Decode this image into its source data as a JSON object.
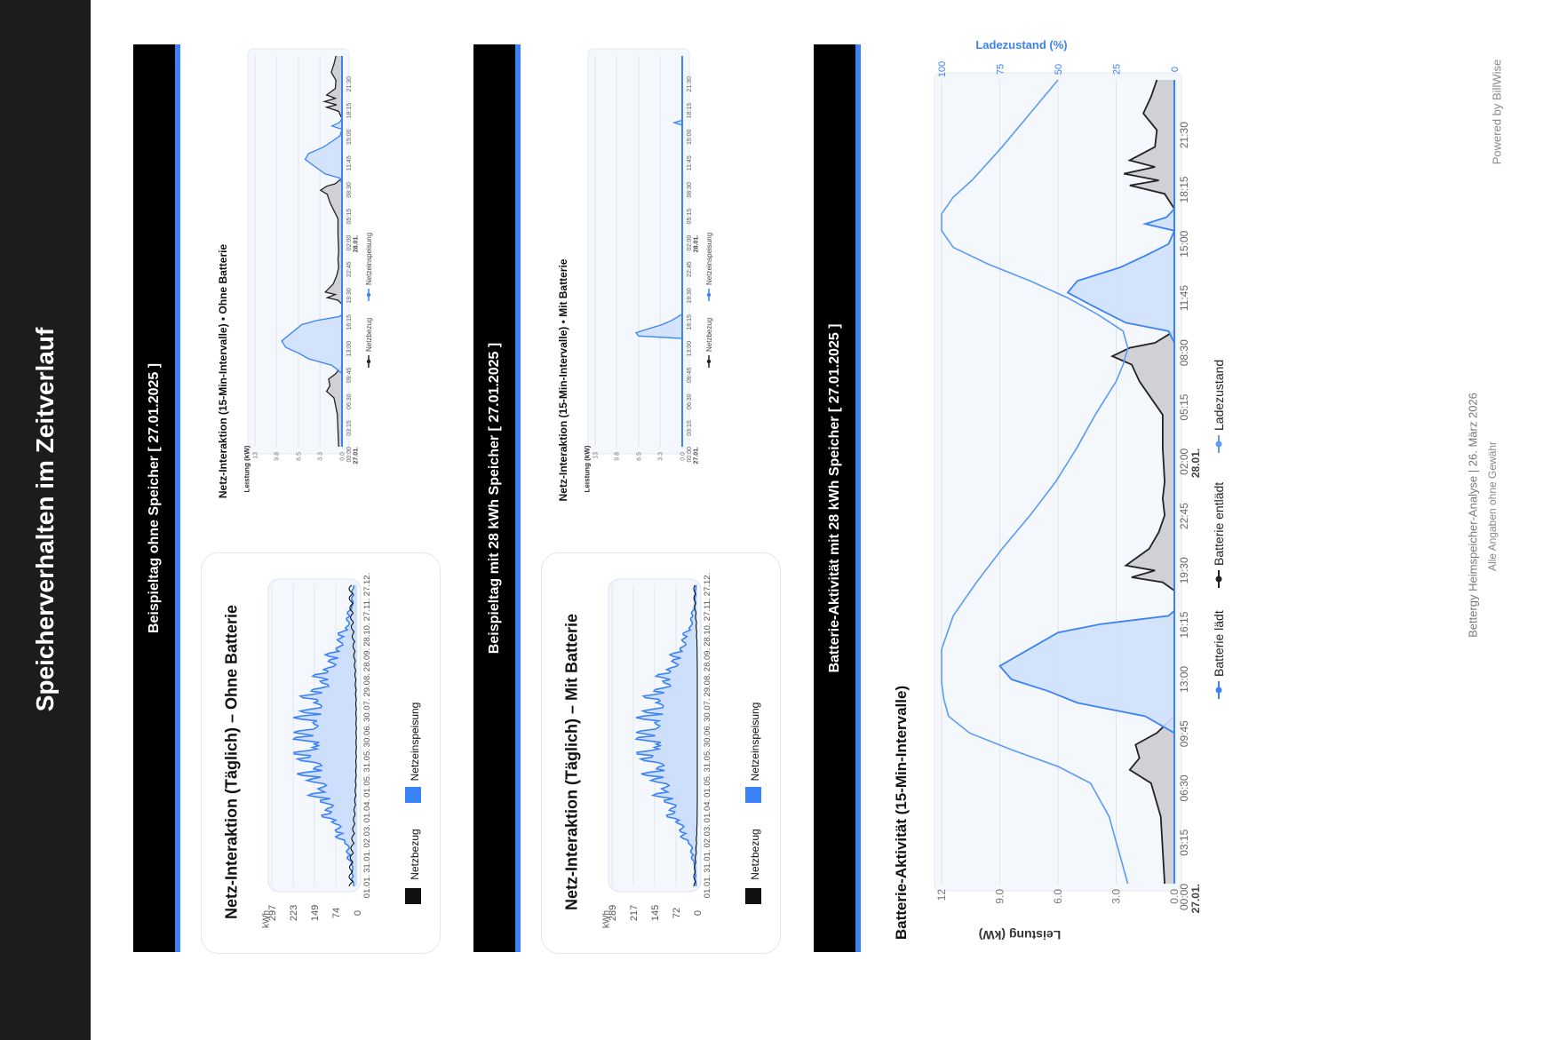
{
  "page": {
    "title": "Speicherverhalten im Zeitverlauf",
    "footer_line1": "Bettergy Heimspeicher-Analyse  |  26. März 2026",
    "footer_line2": "Alle Angaben ohne Gewähr",
    "powered_by": "Powered by BillWise"
  },
  "colors": {
    "accent": "#3b82f6",
    "fill_blue": "#cfe0fb",
    "grey_fill": "#c9cacd",
    "dark": "#1c1c1e"
  },
  "sections": [
    {
      "label": "Beispieltag ohne Speicher  [ 27.01.2025 ]"
    },
    {
      "label": "Beispieltag mit 28 kWh Speicher  [ 27.01.2025 ]"
    },
    {
      "label": "Batterie-Aktivität mit 28 kWh Speicher  [ 27.01.2025 ]"
    }
  ],
  "chart_data": [
    {
      "type": "bar",
      "title": "Netz-Interaktion (Täglich) – Ohne Batterie",
      "unit": "kWh",
      "yticks": [
        "297",
        "223",
        "149",
        "74",
        "0"
      ],
      "ylim": [
        0,
        297
      ],
      "xticks": [
        "01.01.",
        "31.01.",
        "02.03.",
        "01.04.",
        "01.05.",
        "31.05.",
        "30.06.",
        "30.07.",
        "29.08.",
        "28.09.",
        "28.10.",
        "27.11.",
        "27.12."
      ],
      "legend": [
        "Netzbezug",
        "Netzeinspeisung"
      ],
      "series": [
        {
          "name": "Netzeinspeisung",
          "color": "#3b82f6",
          "monthly_peak_values": [
            20,
            45,
            110,
            165,
            215,
            240,
            235,
            205,
            150,
            95,
            45,
            20
          ]
        },
        {
          "name": "Netzbezug",
          "color": "#111111",
          "monthly_peak_values": [
            28,
            22,
            14,
            8,
            5,
            4,
            4,
            5,
            8,
            14,
            22,
            28
          ]
        }
      ]
    },
    {
      "type": "area",
      "title": "Netz-Interaktion (15-Min-Intervalle) • Ohne Batterie",
      "ylabel": "Leistung (kW)",
      "yticks": [
        "13",
        "9.8",
        "6.5",
        "3.3",
        "0.0"
      ],
      "ylim": [
        0,
        13
      ],
      "xticks": [
        "00:00",
        "03:15",
        "06:30",
        "09:45",
        "13:00",
        "16:15",
        "19:30",
        "22:45",
        "02:00",
        "05:15",
        "08:30",
        "11:45",
        "15:00",
        "18:15",
        "21:30"
      ],
      "xtick_dates": [
        "27.01.",
        "28.01."
      ],
      "legend": [
        "Netzbezug",
        "Netzeinspeisung"
      ],
      "x_hours": [
        0,
        4,
        6,
        6.8,
        7.5,
        8.3,
        9,
        10,
        10.8,
        11.5,
        12.2,
        13,
        14,
        15,
        15.5,
        16,
        16.3,
        17,
        17.5,
        18,
        18.3,
        18.7,
        19,
        20,
        21,
        22,
        23,
        24,
        26,
        28,
        30,
        31,
        31.5,
        32,
        32.3,
        33,
        33.5,
        34.5,
        35.3,
        36,
        36.8,
        37.5,
        38.2,
        39,
        39.4,
        39.8,
        40.3,
        41.2,
        41.7,
        42,
        42.4,
        42.8,
        43.2,
        44,
        45,
        46,
        47,
        48
      ],
      "series": [
        {
          "name": "Netzbezug",
          "values": [
            0.5,
            0.7,
            1.2,
            2.3,
            1.8,
            2.0,
            0.9,
            0,
            0,
            0,
            0,
            0,
            0,
            0,
            0,
            0,
            0,
            0,
            0,
            0.6,
            2.2,
            1.0,
            2.5,
            1.3,
            0.8,
            0.5,
            0.6,
            0.5,
            0.6,
            0.6,
            1.8,
            2.2,
            3.2,
            2.3,
            1.0,
            0,
            0,
            0,
            0,
            0,
            0,
            0,
            0,
            0,
            0,
            0,
            0,
            0.5,
            2.3,
            0.8,
            2.6,
            1.0,
            2.3,
            1.0,
            0.9,
            1.6,
            1.2,
            0.9
          ]
        },
        {
          "name": "Netzeinspeisung",
          "values": [
            0,
            0,
            0,
            0,
            0,
            0,
            0,
            1.5,
            5.0,
            6.5,
            8.4,
            9.0,
            7.5,
            6.0,
            3.8,
            0.3,
            0,
            0,
            0,
            0,
            0,
            0,
            0,
            0,
            0,
            0,
            0,
            0,
            0,
            0,
            0,
            0,
            0,
            0,
            0,
            0.3,
            2.5,
            4.2,
            5.5,
            5.0,
            2.8,
            1.5,
            0.3,
            0,
            1.5,
            0.4,
            0,
            0,
            0,
            0,
            0,
            0,
            0,
            0,
            0,
            0,
            0,
            0
          ]
        }
      ]
    },
    {
      "type": "bar",
      "title": "Netz-Interaktion (Täglich) – Mit Batterie",
      "unit": "kWh",
      "yticks": [
        "289",
        "217",
        "145",
        "72",
        "0"
      ],
      "ylim": [
        0,
        289
      ],
      "xticks": [
        "01.01.",
        "31.01.",
        "02.03.",
        "01.04.",
        "01.05.",
        "31.05.",
        "30.06.",
        "30.07.",
        "29.08.",
        "28.09.",
        "28.10.",
        "27.11.",
        "27.12."
      ],
      "legend": [
        "Netzbezug",
        "Netzeinspeisung"
      ],
      "series": [
        {
          "name": "Netzeinspeisung",
          "color": "#3b82f6",
          "monthly_peak_values": [
            8,
            28,
            90,
            145,
            195,
            225,
            220,
            190,
            135,
            75,
            28,
            8
          ]
        },
        {
          "name": "Netzbezug",
          "color": "#111111",
          "monthly_peak_values": [
            12,
            5,
            1,
            0,
            0,
            0,
            0,
            0,
            0,
            1,
            5,
            12
          ]
        }
      ]
    },
    {
      "type": "area",
      "title": "Netz-Interaktion (15-Min-Intervalle) • Mit Batterie",
      "ylabel": "Leistung (kW)",
      "yticks": [
        "13",
        "9.8",
        "6.5",
        "3.3",
        "0.0"
      ],
      "ylim": [
        0,
        13
      ],
      "xticks": [
        "00:00",
        "03:15",
        "06:30",
        "09:45",
        "13:00",
        "16:15",
        "19:30",
        "22:45",
        "02:00",
        "05:15",
        "08:30",
        "11:45",
        "15:00",
        "18:15",
        "21:30"
      ],
      "xtick_dates": [
        "27.01.",
        "28.01."
      ],
      "legend": [
        "Netzbezug",
        "Netzeinspeisung"
      ],
      "x_hours": [
        0,
        13.3,
        13.6,
        14,
        14.5,
        15,
        15.5,
        16,
        16.3,
        39.5,
        39.8,
        40.1,
        48
      ],
      "series": [
        {
          "name": "Netzbezug",
          "values": [
            0,
            0,
            0,
            0,
            0,
            0,
            0,
            0,
            0,
            0,
            0,
            0,
            0
          ]
        },
        {
          "name": "Netzeinspeisung",
          "values": [
            0,
            0,
            6.5,
            6.9,
            5.0,
            3.0,
            1.6,
            0.6,
            0,
            0,
            1.2,
            0,
            0
          ]
        }
      ]
    },
    {
      "type": "area",
      "title": "Batterie-Aktivität (15-Min-Intervalle)",
      "ylabel": "Leistung (kW)",
      "y2label": "Ladezustand (%)",
      "yticks": [
        "12",
        "9.0",
        "6.0",
        "3.0",
        "0.0"
      ],
      "ylim": [
        0,
        12
      ],
      "y2ticks": [
        "100",
        "75",
        "50",
        "25",
        "0"
      ],
      "y2lim": [
        0,
        100
      ],
      "xticks": [
        "00:00",
        "03:15",
        "06:30",
        "09:45",
        "13:00",
        "16:15",
        "19:30",
        "22:45",
        "02:00",
        "05:15",
        "08:30",
        "11:45",
        "15:00",
        "18:15",
        "21:30"
      ],
      "xtick_dates": [
        "27.01.",
        "28.01."
      ],
      "legend": [
        "Batterie lädt",
        "Batterie entlädt",
        "Ladezustand"
      ],
      "x_hours": [
        0,
        4,
        6,
        6.8,
        7.5,
        8.3,
        9,
        10,
        10.8,
        11.5,
        12.2,
        13,
        14,
        15,
        15.5,
        16,
        16.3,
        17,
        17.5,
        18,
        18.3,
        18.7,
        19,
        20,
        21,
        22,
        23,
        24,
        26,
        28,
        30,
        31,
        31.5,
        32,
        32.3,
        33,
        33.5,
        34.5,
        35.3,
        36,
        36.8,
        37.5,
        38.2,
        39,
        39.4,
        39.8,
        40.3,
        41.2,
        41.7,
        42,
        42.4,
        42.8,
        43.2,
        44,
        45,
        46,
        47,
        48
      ],
      "series": [
        {
          "name": "Batterie entlädt",
          "values": [
            0.5,
            0.7,
            1.2,
            2.3,
            1.8,
            2.0,
            0.9,
            0,
            0,
            0,
            0,
            0,
            0,
            0,
            0,
            0,
            0,
            0,
            0,
            0.6,
            2.2,
            1.0,
            2.5,
            1.3,
            0.8,
            0.5,
            0.6,
            0.5,
            0.6,
            0.6,
            1.8,
            2.2,
            3.2,
            2.3,
            1.0,
            0,
            0,
            0,
            0,
            0,
            0,
            0,
            0,
            0,
            0,
            0,
            0,
            0.5,
            2.3,
            0.8,
            2.6,
            1.0,
            2.3,
            1.0,
            0.9,
            1.6,
            1.2,
            0.9
          ]
        },
        {
          "name": "Batterie lädt",
          "values": [
            0,
            0,
            0,
            0,
            0,
            0,
            0,
            1.5,
            5.0,
            6.5,
            8.4,
            9.0,
            7.5,
            6.0,
            3.8,
            0.3,
            0,
            0,
            0,
            0,
            0,
            0,
            0,
            0,
            0,
            0,
            0,
            0,
            0,
            0,
            0,
            0,
            0,
            0,
            0,
            0.3,
            2.5,
            4.2,
            5.5,
            5.0,
            2.8,
            1.5,
            0.3,
            0,
            1.5,
            0.4,
            0,
            0,
            0,
            0,
            0,
            0,
            0,
            0,
            0,
            0,
            0,
            0
          ]
        },
        {
          "name": "Ladezustand",
          "x_hours": [
            0,
            4,
            6,
            7,
            8,
            9,
            10,
            11,
            12,
            13,
            14,
            16,
            18,
            20,
            22,
            24,
            26,
            28,
            30,
            31,
            32,
            33,
            34,
            35,
            36,
            37,
            38,
            39,
            40,
            41,
            42,
            44,
            46,
            48
          ],
          "values": [
            20,
            28,
            36,
            50,
            70,
            88,
            97,
            99,
            100,
            100,
            100,
            95,
            85,
            74,
            62,
            51,
            42,
            34,
            25,
            22,
            20,
            22,
            33,
            46,
            62,
            80,
            95,
            100,
            100,
            95,
            87,
            74,
            62,
            50
          ]
        }
      ]
    }
  ]
}
